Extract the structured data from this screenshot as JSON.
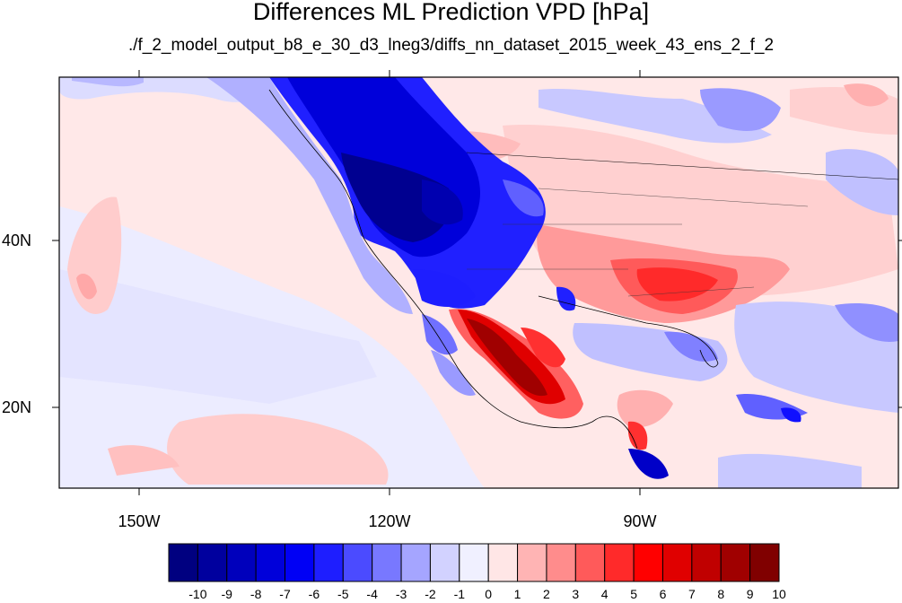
{
  "title": "Differences ML Prediction VPD [hPa]",
  "subtitle": "./f_2_model_output_b8_e_30_d3_lneg3/diffs_nn_dataset_2015_week_43_ens_2_f_2",
  "y_labels": [
    "40N",
    "20N"
  ],
  "x_labels": [
    "150W",
    "120W",
    "90W"
  ],
  "colorbar": {
    "labels": [
      "-10",
      "-9",
      "-8",
      "-7",
      "-6",
      "-5",
      "-4",
      "-3",
      "-2",
      "-1",
      "0",
      "1",
      "2",
      "3",
      "4",
      "5",
      "6",
      "7",
      "8",
      "9",
      "10"
    ],
    "colors": [
      "#000080",
      "#00009e",
      "#0000bc",
      "#0000da",
      "#0000f5",
      "#1e1eff",
      "#4b4bff",
      "#7878ff",
      "#a5a5ff",
      "#d2d2ff",
      "#f0f0ff",
      "#ffe6e6",
      "#ffb4b4",
      "#ff8c8c",
      "#ff5a5a",
      "#ff2a2a",
      "#ff0000",
      "#e00000",
      "#c00000",
      "#a00000",
      "#800000"
    ]
  },
  "colors": {
    "deep_blue": "#00008c",
    "blue": "#1e1eff",
    "light_blue": "#c8c8ff",
    "pale": "#ececff",
    "pink": "#ffdede",
    "red": "#ff3030",
    "dark_red": "#9a0000"
  }
}
